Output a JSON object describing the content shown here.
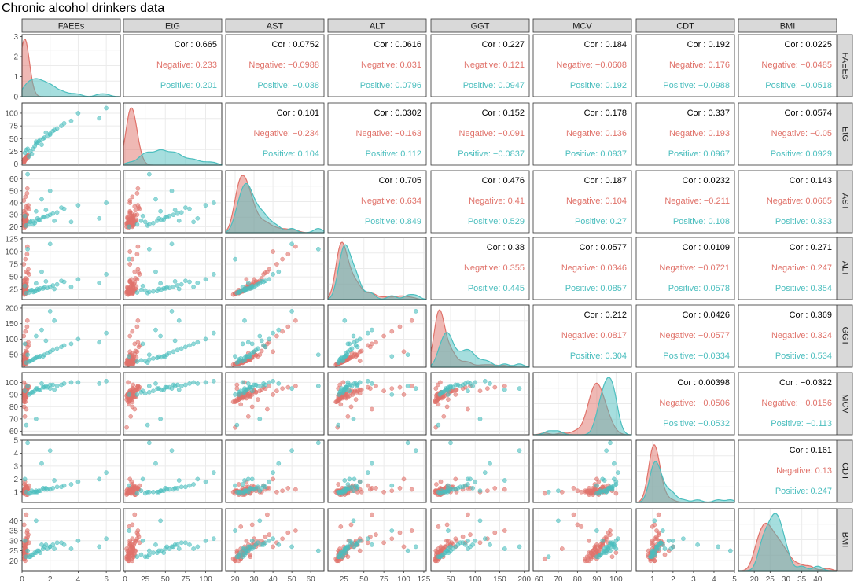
{
  "colors": {
    "negative": "#E0726A",
    "positive": "#4BBEBE",
    "overall": "#000000"
  },
  "chart_data": {
    "type": "scatter",
    "title": "Chronic alcohol drinkers data",
    "variables": [
      "FAEEs",
      "EtG",
      "AST",
      "ALT",
      "GGT",
      "MCV",
      "CDT",
      "BMI"
    ],
    "groups": [
      "Negative",
      "Positive"
    ],
    "labels": {
      "cor": "Cor",
      "negative": "Negative",
      "positive": "Positive"
    },
    "axes": {
      "FAEEs": {
        "lim": [
          0,
          7
        ],
        "ticks": [
          0,
          2,
          4,
          6
        ]
      },
      "EtG": {
        "lim": [
          -2,
          120
        ],
        "ticks": [
          0,
          25,
          50,
          75,
          100
        ]
      },
      "AST": {
        "lim": [
          15,
          67
        ],
        "ticks": [
          20,
          30,
          40,
          50,
          60
        ]
      },
      "ALT": {
        "lim": [
          5,
          128
        ],
        "ticks": [
          25,
          50,
          75,
          100,
          125
        ]
      },
      "GGT": {
        "lim": [
          10,
          210
        ],
        "ticks": [
          50,
          100,
          150,
          200
        ]
      },
      "MCV": {
        "lim": [
          57,
          108
        ],
        "ticks": [
          60,
          70,
          80,
          90,
          100
        ]
      },
      "CDT": {
        "lim": [
          0.2,
          5
        ],
        "ticks": [
          1,
          2,
          3,
          4,
          5
        ]
      },
      "BMI": {
        "lim": [
          15,
          46
        ],
        "ticks": [
          20,
          25,
          30,
          35,
          40
        ]
      }
    },
    "density_ylim": {
      "FAEEs": [
        0,
        3.1
      ]
    },
    "density_ticks": {
      "FAEEs": [
        0,
        1,
        2,
        3
      ]
    },
    "correlations": {
      "FAEEs|EtG": [
        "0.665",
        "0.233",
        "0.201"
      ],
      "FAEEs|AST": [
        "0.0752",
        "-0.0988",
        "-0.038"
      ],
      "FAEEs|ALT": [
        "0.0616",
        "0.031",
        "0.0796"
      ],
      "FAEEs|GGT": [
        "0.227",
        "0.121",
        "0.0947"
      ],
      "FAEEs|MCV": [
        "0.184",
        "-0.0608",
        "0.192"
      ],
      "FAEEs|CDT": [
        "0.192",
        "0.176",
        "-0.0988"
      ],
      "FAEEs|BMI": [
        "0.0225",
        "-0.0485",
        "-0.0518"
      ],
      "EtG|AST": [
        "0.101",
        "-0.234",
        "0.104"
      ],
      "EtG|ALT": [
        "0.0302",
        "-0.163",
        "0.112"
      ],
      "EtG|GGT": [
        "0.152",
        "-0.091",
        "-0.0837"
      ],
      "EtG|MCV": [
        "0.178",
        "0.136",
        "0.0937"
      ],
      "EtG|CDT": [
        "0.337",
        "0.193",
        "0.0967"
      ],
      "EtG|BMI": [
        "0.0574",
        "-0.05",
        "0.0929"
      ],
      "AST|ALT": [
        "0.705",
        "0.634",
        "0.849"
      ],
      "AST|GGT": [
        "0.476",
        "0.41",
        "0.529"
      ],
      "AST|MCV": [
        "0.187",
        "0.104",
        "0.27"
      ],
      "AST|CDT": [
        "0.0232",
        "-0.211",
        "0.108"
      ],
      "AST|BMI": [
        "0.143",
        "0.0665",
        "0.333"
      ],
      "ALT|GGT": [
        "0.38",
        "0.355",
        "0.445"
      ],
      "ALT|MCV": [
        "0.0577",
        "0.0346",
        "0.0857"
      ],
      "ALT|CDT": [
        "0.0109",
        "-0.0721",
        "0.0578"
      ],
      "ALT|BMI": [
        "0.271",
        "0.247",
        "0.354"
      ],
      "GGT|MCV": [
        "0.212",
        "0.0817",
        "0.304"
      ],
      "GGT|CDT": [
        "0.0426",
        "-0.0577",
        "-0.0334"
      ],
      "GGT|BMI": [
        "0.369",
        "0.324",
        "0.534"
      ],
      "MCV|CDT": [
        "0.00398",
        "-0.0506",
        "-0.0532"
      ],
      "MCV|BMI": [
        "-0.0322",
        "-0.0156",
        "-0.113"
      ],
      "CDT|BMI": [
        "0.161",
        "0.13",
        "0.247"
      ]
    },
    "samples": {
      "Negative": [
        [
          0.1,
          5,
          22,
          19,
          22,
          90,
          1.0,
          24
        ],
        [
          0.2,
          8,
          25,
          25,
          30,
          92,
          1.2,
          27
        ],
        [
          0.05,
          3,
          28,
          30,
          35,
          88,
          0.9,
          22
        ],
        [
          0.3,
          10,
          21,
          18,
          20,
          95,
          1.1,
          25
        ],
        [
          0.1,
          6,
          32,
          40,
          45,
          86,
          1.3,
          30
        ],
        [
          0.4,
          12,
          24,
          22,
          28,
          91,
          0.8,
          23
        ],
        [
          0.15,
          4,
          19,
          15,
          18,
          84,
          1.0,
          21
        ],
        [
          0.25,
          9,
          27,
          35,
          55,
          93,
          1.4,
          28
        ],
        [
          0.08,
          2,
          23,
          20,
          25,
          89,
          1.1,
          26
        ],
        [
          0.35,
          15,
          30,
          45,
          60,
          94,
          1.2,
          31
        ],
        [
          0.12,
          7,
          26,
          28,
          32,
          87,
          0.9,
          24
        ],
        [
          0.5,
          18,
          35,
          55,
          80,
          96,
          1.5,
          29
        ],
        [
          0.2,
          11,
          22,
          24,
          27,
          90,
          1.0,
          22
        ],
        [
          0.06,
          5,
          20,
          17,
          19,
          85,
          1.1,
          20
        ],
        [
          0.18,
          8,
          29,
          33,
          40,
          92,
          1.2,
          27
        ],
        [
          0.3,
          13,
          25,
          26,
          30,
          88,
          0.8,
          25
        ],
        [
          0.1,
          4,
          24,
          21,
          24,
          91,
          1.0,
          23
        ],
        [
          0.45,
          16,
          38,
          65,
          90,
          97,
          1.3,
          33
        ],
        [
          0.22,
          9,
          21,
          19,
          23,
          86,
          1.1,
          24
        ],
        [
          0.14,
          6,
          33,
          42,
          50,
          93,
          1.0,
          28
        ],
        [
          0.28,
          10,
          27,
          29,
          35,
          89,
          1.2,
          26
        ],
        [
          0.07,
          3,
          23,
          22,
          26,
          90,
          0.9,
          21
        ],
        [
          0.33,
          14,
          26,
          31,
          42,
          94,
          1.4,
          30
        ],
        [
          0.11,
          5,
          22,
          18,
          21,
          87,
          1.0,
          22
        ],
        [
          0.19,
          8,
          31,
          37,
          48,
          92,
          1.1,
          27
        ],
        [
          0.26,
          12,
          24,
          23,
          29,
          88,
          1.3,
          25
        ],
        [
          0.09,
          4,
          28,
          27,
          33,
          91,
          0.9,
          23
        ],
        [
          0.4,
          17,
          36,
          58,
          75,
          95,
          1.2,
          32
        ],
        [
          0.16,
          7,
          25,
          24,
          28,
          89,
          1.0,
          24
        ],
        [
          0.23,
          9,
          20,
          16,
          20,
          84,
          1.1,
          20
        ],
        [
          0.13,
          6,
          42,
          75,
          110,
          93,
          1.0,
          29
        ],
        [
          0.3,
          11,
          29,
          36,
          44,
          90,
          1.5,
          28
        ],
        [
          0.05,
          2,
          22,
          20,
          24,
          86,
          0.8,
          22
        ],
        [
          0.21,
          10,
          26,
          27,
          31,
          92,
          1.2,
          26
        ],
        [
          0.36,
          15,
          48,
          95,
          140,
          96,
          1.3,
          34
        ],
        [
          0.1,
          5,
          24,
          22,
          25,
          88,
          1.1,
          23
        ],
        [
          0.27,
          13,
          34,
          47,
          62,
          94,
          1.0,
          30
        ],
        [
          0.17,
          8,
          23,
          21,
          26,
          87,
          0.9,
          21
        ],
        [
          0.08,
          3,
          27,
          28,
          32,
          90,
          1.2,
          25
        ],
        [
          0.32,
          12,
          30,
          39,
          52,
          93,
          1.4,
          29
        ],
        [
          0.14,
          6,
          21,
          18,
          22,
          85,
          1.0,
          22
        ],
        [
          0.24,
          9,
          45,
          85,
          125,
          95,
          1.1,
          31
        ],
        [
          0.12,
          7,
          25,
          25,
          29,
          91,
          1.0,
          24
        ],
        [
          0.2,
          10,
          28,
          32,
          38,
          89,
          1.3,
          27
        ],
        [
          0.06,
          4,
          22,
          19,
          23,
          86,
          0.9,
          20
        ],
        [
          0.38,
          16,
          52,
          110,
          160,
          97,
          1.2,
          35
        ],
        [
          0.15,
          5,
          26,
          26,
          30,
          90,
          1.1,
          25
        ],
        [
          0.29,
          11,
          23,
          22,
          27,
          88,
          1.0,
          23
        ],
        [
          0.1,
          6,
          31,
          41,
          49,
          92,
          1.2,
          28
        ],
        [
          0.22,
          8,
          24,
          23,
          28,
          87,
          1.1,
          24
        ],
        [
          0.04,
          2,
          20,
          17,
          20,
          63,
          0.9,
          21
        ],
        [
          0.2,
          7,
          27,
          30,
          36,
          72,
          1.0,
          26
        ],
        [
          0.3,
          12,
          37,
          60,
          85,
          78,
          1.3,
          43
        ],
        [
          0.15,
          9,
          29,
          34,
          43,
          80,
          1.1,
          38
        ],
        [
          0.09,
          5,
          23,
          21,
          25,
          82,
          1.0,
          37
        ],
        [
          0.25,
          10,
          21,
          20,
          24,
          98,
          1.1,
          22
        ],
        [
          0.13,
          4,
          25,
          24,
          29,
          100,
          0.9,
          24
        ],
        [
          0.2,
          8,
          26,
          45,
          30,
          91,
          1.8,
          25
        ],
        [
          0.1,
          6,
          40,
          100,
          60,
          90,
          2.0,
          27
        ],
        [
          0.18,
          9,
          22,
          18,
          21,
          89,
          1.6,
          23
        ]
      ],
      "Positive": [
        [
          1.0,
          40,
          25,
          22,
          40,
          95,
          1.0,
          24
        ],
        [
          2.0,
          60,
          30,
          30,
          60,
          98,
          1.2,
          27
        ],
        [
          0.8,
          30,
          22,
          20,
          35,
          92,
          1.0,
          23
        ],
        [
          1.5,
          50,
          28,
          27,
          45,
          96,
          1.3,
          26
        ],
        [
          3.0,
          80,
          35,
          40,
          80,
          99,
          1.5,
          28
        ],
        [
          0.6,
          25,
          24,
          23,
          30,
          91,
          0.9,
          22
        ],
        [
          1.2,
          45,
          26,
          25,
          42,
          94,
          1.1,
          25
        ],
        [
          2.5,
          70,
          32,
          35,
          70,
          97,
          1.4,
          29
        ],
        [
          4.0,
          100,
          38,
          45,
          100,
          100,
          1.8,
          30
        ],
        [
          0.9,
          35,
          23,
          21,
          38,
          93,
          1.0,
          24
        ],
        [
          1.8,
          55,
          29,
          28,
          55,
          96,
          1.2,
          26
        ],
        [
          5.5,
          90,
          27,
          38,
          90,
          99,
          2.0,
          27
        ],
        [
          0.7,
          20,
          25,
          24,
          32,
          92,
          1.1,
          23
        ],
        [
          2.2,
          65,
          31,
          33,
          65,
          98,
          1.3,
          28
        ],
        [
          1.1,
          42,
          27,
          26,
          44,
          95,
          1.0,
          25
        ],
        [
          3.5,
          85,
          24,
          30,
          85,
          100,
          1.6,
          26
        ],
        [
          0.5,
          15,
          22,
          19,
          28,
          90,
          0.9,
          22
        ],
        [
          1.6,
          52,
          28,
          29,
          50,
          96,
          1.2,
          27
        ],
        [
          2.8,
          75,
          36,
          42,
          75,
          98,
          1.4,
          29
        ],
        [
          1.3,
          48,
          26,
          27,
          46,
          94,
          1.1,
          24
        ],
        [
          6.0,
          110,
          40,
          55,
          120,
          101,
          2.5,
          31
        ],
        [
          0.4,
          30,
          64,
          105,
          50,
          97,
          4.8,
          25
        ],
        [
          2.0,
          58,
          50,
          115,
          190,
          95,
          4.2,
          27
        ],
        [
          1.4,
          38,
          43,
          60,
          130,
          99,
          3.2,
          28
        ],
        [
          0.3,
          28,
          21,
          18,
          25,
          65,
          1.0,
          22
        ],
        [
          1.0,
          44,
          33,
          37,
          110,
          70,
          1.1,
          40
        ],
        [
          2.3,
          67,
          25,
          26,
          160,
          94,
          1.9,
          26
        ],
        [
          0.2,
          22,
          29,
          32,
          85,
          93,
          2.0,
          30
        ],
        [
          0.1,
          5,
          20,
          85,
          45,
          90,
          1.5,
          35
        ],
        [
          1.7,
          62,
          34,
          41,
          95,
          97,
          1.3,
          28
        ]
      ]
    }
  }
}
